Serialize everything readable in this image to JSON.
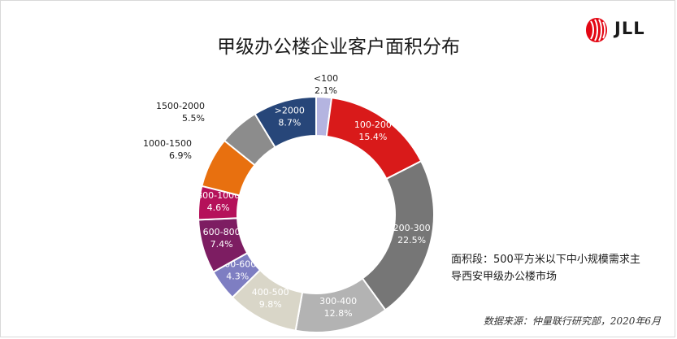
{
  "title": "甲级办公楼企业客户面积分布",
  "logo": {
    "name": "JLL",
    "color": "#e30613"
  },
  "note": "面积段：500平方米以下中小规模需求主导西安甲级办公楼市场",
  "source": "数据来源：仲量联行研究部，2020年6月",
  "chart_data": {
    "type": "pie",
    "donut": true,
    "title": "甲级办公楼企业客户面积分布",
    "labels": [
      "<100",
      "100-200",
      "200-300",
      "300-400",
      "400-500",
      "500-600",
      "600-800",
      "800-1000",
      "1000-1500",
      "1500-2000",
      ">2000"
    ],
    "values": [
      2.1,
      15.4,
      22.5,
      12.8,
      9.8,
      4.3,
      7.4,
      4.6,
      6.9,
      5.5,
      8.7
    ],
    "value_labels": [
      "2.1%",
      "15.4%",
      "22.5%",
      "12.8%",
      "9.8%",
      "4.3%",
      "7.4%",
      "4.6%",
      "6.9%",
      "5.5%",
      "8.7%"
    ],
    "colors": [
      "#b4b4e0",
      "#d91a1a",
      "#767676",
      "#b3b3b3",
      "#d9d6c8",
      "#7e7ec2",
      "#7d1d62",
      "#b5115a",
      "#e8700f",
      "#8c8c8c",
      "#274679"
    ],
    "label_colors": [
      "#1a1a1a",
      "#ffffff",
      "#ffffff",
      "#ffffff",
      "#ffffff",
      "#ffffff",
      "#ffffff",
      "#ffffff",
      "#1a1a1a",
      "#1a1a1a",
      "#ffffff"
    ],
    "legend": "none"
  }
}
